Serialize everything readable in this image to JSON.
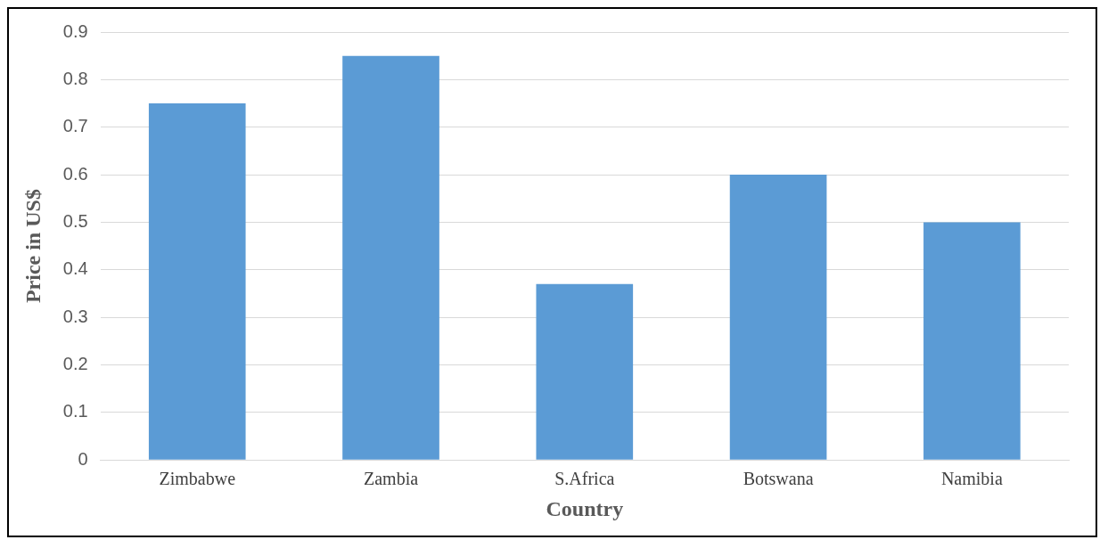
{
  "chart_data": {
    "type": "bar",
    "xlabel": "Country",
    "ylabel": "Price in US$",
    "categories": [
      "Zimbabwe",
      "Zambia",
      "S.Africa",
      "Botswana",
      "Namibia"
    ],
    "values": [
      0.75,
      0.85,
      0.37,
      0.6,
      0.5
    ],
    "color": "#5b9bd5",
    "ylim": [
      0,
      0.9
    ],
    "yticks": [
      0,
      0.1,
      0.2,
      0.3,
      0.4,
      0.5,
      0.6,
      0.7,
      0.8,
      0.9
    ],
    "grid": "y",
    "legend": false
  }
}
